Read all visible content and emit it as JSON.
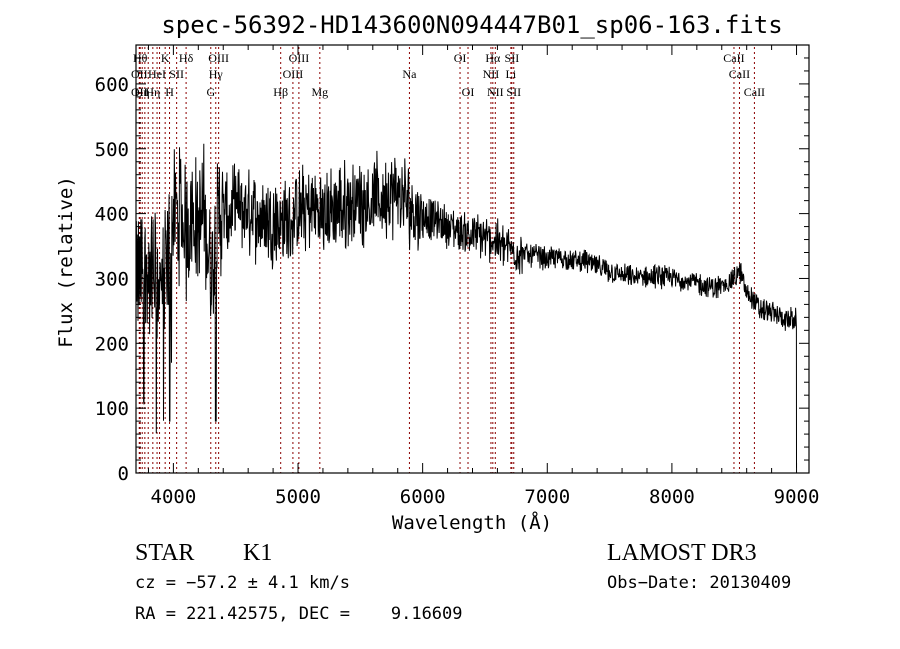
{
  "chart_data": {
    "type": "line",
    "title": "spec-56392-HD143600N094447B01_sp06-163.fits",
    "xlabel": "Wavelength (Å)",
    "ylabel": "Flux (relative)",
    "xlim": [
      3700,
      9100
    ],
    "ylim": [
      0,
      660
    ],
    "xticks": [
      4000,
      5000,
      6000,
      7000,
      8000,
      9000
    ],
    "yticks": [
      0,
      100,
      200,
      300,
      400,
      500,
      600
    ],
    "grid": false,
    "line_color": "#000000",
    "marker_color": "#8b0000",
    "series": [
      {
        "x": [
          3700,
          3750,
          3800,
          3850,
          3900,
          3950,
          4000,
          4050,
          4100,
          4150,
          4200,
          4250,
          4300,
          4350,
          4400,
          4450,
          4500,
          4600,
          4700,
          4800,
          4900,
          5000,
          5100,
          5200,
          5300,
          5400,
          5500,
          5600,
          5700,
          5800,
          5900,
          6000,
          6100,
          6200,
          6300,
          6400,
          6500,
          6600,
          6700,
          6800,
          6900,
          7000,
          7100,
          7200,
          7300,
          7400,
          7500,
          7600,
          7700,
          7800,
          7900,
          8000,
          8100,
          8200,
          8300,
          8400,
          8500,
          8550,
          8600,
          8650,
          8700,
          8800,
          8900,
          9000
        ],
        "y": [
          290,
          320,
          300,
          310,
          280,
          330,
          395,
          400,
          370,
          410,
          380,
          400,
          300,
          390,
          400,
          395,
          410,
          400,
          395,
          390,
          385,
          400,
          410,
          400,
          405,
          415,
          420,
          420,
          425,
          430,
          410,
          395,
          390,
          380,
          372,
          368,
          362,
          357,
          345,
          338,
          336,
          330,
          333,
          326,
          328,
          318,
          310,
          305,
          301,
          302,
          303,
          300,
          298,
          293,
          285,
          288,
          300,
          310,
          278,
          270,
          252,
          248,
          238,
          235
        ]
      }
    ],
    "lines": [
      {
        "x": 3734,
        "label": "Hθ",
        "row": 0
      },
      {
        "x": 3727,
        "label": "OII",
        "row": 1
      },
      {
        "x": 3727,
        "label": "OII",
        "row": 2
      },
      {
        "x": 3750,
        "label": "Hη",
        "row": 2
      },
      {
        "x": 3771,
        "label": "",
        "row": -1
      },
      {
        "x": 3798,
        "label": "",
        "row": -1
      },
      {
        "x": 3835,
        "label": "Hη",
        "row": 2
      },
      {
        "x": 3869,
        "label": "HeI",
        "row": 1
      },
      {
        "x": 3889,
        "label": "",
        "row": -1
      },
      {
        "x": 3934,
        "label": "K",
        "row": 0
      },
      {
        "x": 3969,
        "label": "H",
        "row": 2
      },
      {
        "x": 4026,
        "label": "SII",
        "row": 1
      },
      {
        "x": 4102,
        "label": "Hδ",
        "row": 0
      },
      {
        "x": 4300,
        "label": "G",
        "row": 2
      },
      {
        "x": 4340,
        "label": "Hγ",
        "row": 1
      },
      {
        "x": 4363,
        "label": "OIII",
        "row": 0
      },
      {
        "x": 4861,
        "label": "Hβ",
        "row": 2
      },
      {
        "x": 4959,
        "label": "OIII",
        "row": 1
      },
      {
        "x": 5007,
        "label": "OIII",
        "row": 0
      },
      {
        "x": 5175,
        "label": "Mg",
        "row": 2
      },
      {
        "x": 5894,
        "label": "Na",
        "row": 1
      },
      {
        "x": 6300,
        "label": "OI",
        "row": 0
      },
      {
        "x": 6364,
        "label": "OI",
        "row": 2
      },
      {
        "x": 6548,
        "label": "NII",
        "row": 1
      },
      {
        "x": 6563,
        "label": "Hα",
        "row": 0
      },
      {
        "x": 6583,
        "label": "NII",
        "row": 2
      },
      {
        "x": 6716,
        "label": "SII",
        "row": 0
      },
      {
        "x": 6731,
        "label": "SII",
        "row": 2
      },
      {
        "x": 6708,
        "label": "Li",
        "row": 1
      },
      {
        "x": 8498,
        "label": "CaII",
        "row": 0
      },
      {
        "x": 8542,
        "label": "CaII",
        "row": 1
      },
      {
        "x": 8662,
        "label": "CaII",
        "row": 2
      }
    ]
  },
  "info": {
    "class": "STAR",
    "subclass": "K1",
    "survey": "LAMOST DR3",
    "cz": "cz = −57.2 ± 4.1 km/s",
    "obsdate": "Obs−Date: 20130409",
    "radec": "RA = 221.42575, DEC =    9.16609"
  }
}
